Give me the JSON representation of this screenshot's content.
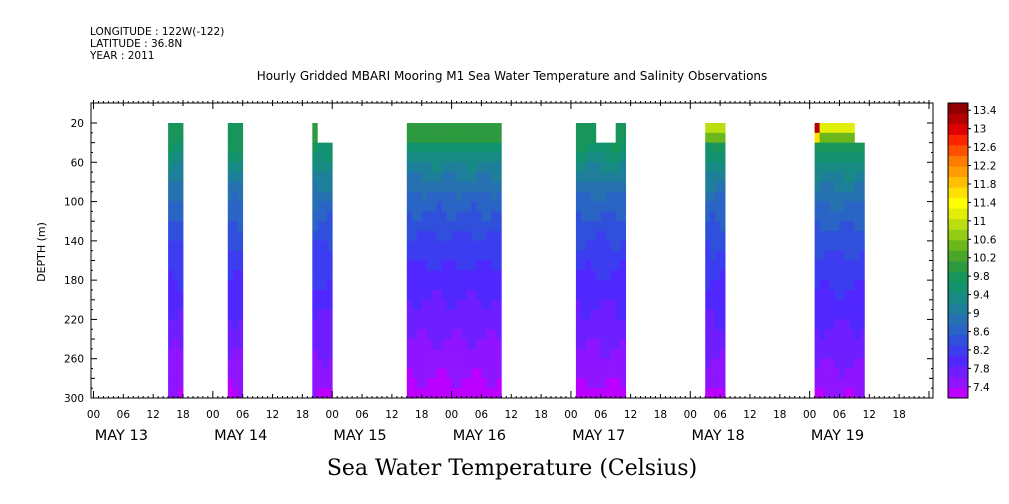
{
  "header": {
    "longitude": "LONGITUDE : 122W(-122)",
    "latitude": "LATITUDE : 36.8N",
    "year": "YEAR : 2011",
    "title": "Hourly Gridded MBARI Mooring M1 Sea Water Temperature and Salinity Observations"
  },
  "chart_data": {
    "type": "heatmap",
    "title": "Hourly Gridded MBARI Mooring M1 Sea Water Temperature and Salinity Observations",
    "xlabel": "",
    "ylabel": "DEPTH (m)",
    "variable_label": "Sea Water Temperature (Celsius)",
    "y_axis": {
      "ticks": [
        20,
        60,
        100,
        140,
        180,
        220,
        260,
        300
      ],
      "range": [
        20,
        300
      ],
      "inverted": true
    },
    "x_axis": {
      "hour_ticks": [
        "00",
        "06",
        "12",
        "18",
        "00",
        "06",
        "12",
        "18",
        "00",
        "06",
        "12",
        "18",
        "00",
        "06",
        "12",
        "18",
        "00",
        "06",
        "12",
        "18",
        "00",
        "06",
        "12",
        "18",
        "00",
        "06",
        "12",
        "18"
      ],
      "day_labels": [
        "MAY 13",
        "MAY 14",
        "MAY 15",
        "MAY 16",
        "MAY 17",
        "MAY 18",
        "MAY 19"
      ],
      "range_hours": [
        0,
        168
      ]
    },
    "colorbar": {
      "labels": [
        "13.4",
        "13",
        "12.6",
        "12.2",
        "11.8",
        "11.4",
        "11",
        "10.6",
        "10.2",
        "9.8",
        "9.4",
        "9",
        "8.6",
        "8.2",
        "7.8",
        "7.4"
      ],
      "range": [
        7.4,
        13.6
      ],
      "colors": [
        "#bb00ff",
        "#8f14ff",
        "#6e1eff",
        "#5028ff",
        "#3c3cf0",
        "#3050dc",
        "#2a64c4",
        "#2672b0",
        "#1e7f9a",
        "#178a84",
        "#12926e",
        "#17955a",
        "#2e9a40",
        "#4aa628",
        "#6cb81c",
        "#92cc14",
        "#bade10",
        "#e0ee08",
        "#ffff00",
        "#ffe000",
        "#ffbe00",
        "#ff9c00",
        "#ff7a00",
        "#ff5000",
        "#ff2400",
        "#e00000",
        "#b40000",
        "#900000"
      ]
    },
    "depths": [
      20,
      30,
      40,
      50,
      60,
      70,
      80,
      90,
      100,
      110,
      120,
      130,
      140,
      150,
      160,
      170,
      180,
      190,
      200,
      210,
      220,
      230,
      240,
      250,
      260,
      270,
      280,
      290,
      300
    ],
    "profile_temps": [
      10.2,
      10.05,
      9.85,
      9.65,
      9.45,
      9.3,
      9.15,
      9.0,
      8.88,
      8.78,
      8.68,
      8.6,
      8.52,
      8.45,
      8.38,
      8.32,
      8.26,
      8.2,
      8.14,
      8.08,
      8.02,
      7.97,
      7.92,
      7.86,
      7.8,
      7.74,
      7.68,
      7.6,
      7.52
    ],
    "segments": [
      {
        "start_hour": 15,
        "end_hour": 18,
        "surface_temp": 10.0,
        "shift": -0.02,
        "top_depth": 20
      },
      {
        "start_hour": 27,
        "end_hour": 30,
        "surface_temp": 9.9,
        "shift": 0.0,
        "top_depth": 20
      },
      {
        "start_hour": 44,
        "end_hour": 45,
        "surface_temp": 10.1,
        "shift": 0.02,
        "top_depth": 20
      },
      {
        "start_hour": 45,
        "end_hour": 48,
        "surface_temp": 9.0,
        "shift": 0.0,
        "top_depth": 40
      },
      {
        "start_hour": 63,
        "end_hour": 82,
        "surface_temp": 10.2,
        "shift": -0.1,
        "top_depth": 20
      },
      {
        "start_hour": 97,
        "end_hour": 101,
        "surface_temp": 10.0,
        "shift": -0.05,
        "top_depth": 20
      },
      {
        "start_hour": 101,
        "end_hour": 105,
        "surface_temp": 9.2,
        "shift": -0.05,
        "top_depth": 40
      },
      {
        "start_hour": 105,
        "end_hour": 107,
        "surface_temp": 10.0,
        "shift": -0.05,
        "top_depth": 20
      },
      {
        "start_hour": 123,
        "end_hour": 127,
        "surface_temp": 11.0,
        "shift": 0.0,
        "top_depth": 20
      },
      {
        "start_hour": 145,
        "end_hour": 146,
        "surface_temp": 13.2,
        "shift": 0.05,
        "top_depth": 20
      },
      {
        "start_hour": 146,
        "end_hour": 153,
        "surface_temp": 11.2,
        "shift": 0.05,
        "top_depth": 20
      },
      {
        "start_hour": 153,
        "end_hour": 155,
        "surface_temp": 9.0,
        "shift": 0.05,
        "top_depth": 40
      }
    ]
  }
}
